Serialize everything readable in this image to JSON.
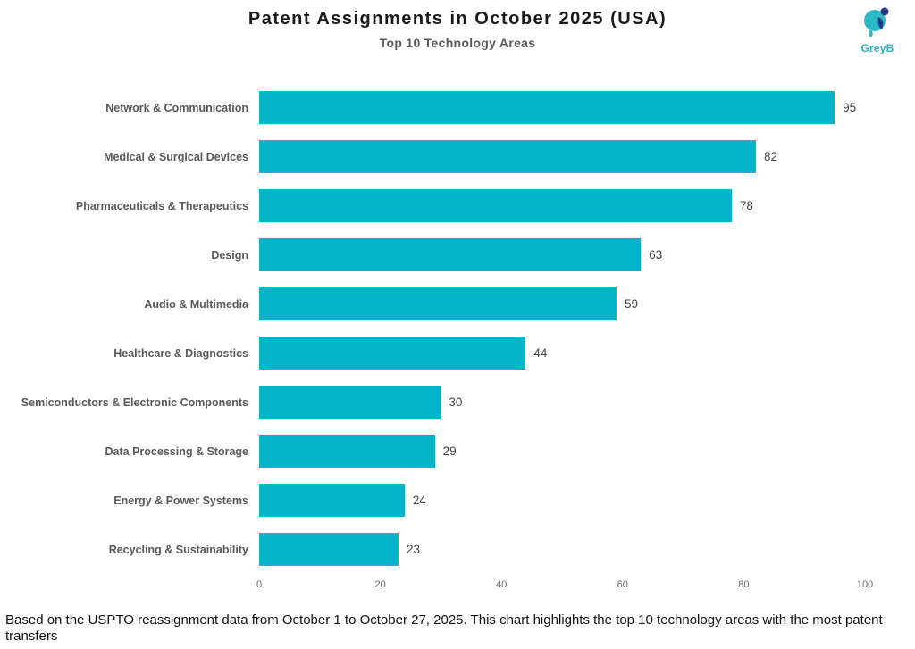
{
  "header": {
    "title": "Patent Assignments in October 2025 (USA)",
    "subtitle": "Top 10 Technology Areas",
    "logo_text": "GreyB"
  },
  "chart_data": {
    "type": "bar",
    "orientation": "horizontal",
    "title": "Patent Assignments in October 2025 (USA)",
    "subtitle": "Top 10 Technology Areas",
    "categories": [
      "Network & Communication",
      "Medical & Surgical Devices",
      "Pharmaceuticals & Therapeutics",
      "Design",
      "Audio & Multimedia",
      "Healthcare & Diagnostics",
      "Semiconductors & Electronic Components",
      "Data Processing & Storage",
      "Energy & Power Systems",
      "Recycling & Sustainability"
    ],
    "values": [
      95,
      82,
      78,
      63,
      59,
      44,
      30,
      29,
      24,
      23
    ],
    "xlabel": "",
    "ylabel": "",
    "xlim": [
      0,
      100
    ],
    "xticks": [
      0,
      20,
      40,
      60,
      80,
      100
    ],
    "grid": false,
    "legend": false,
    "value_labels": true,
    "bar_color": "#04b5c9"
  },
  "colors": {
    "bar": "#04b5c9",
    "logo_teal": "#27b3c3",
    "logo_navy": "#27378c",
    "title_text": "#1a1a1a",
    "subtitle_text": "#595959",
    "category_text": "#595959",
    "value_text": "#444444",
    "tick_text": "#666666"
  },
  "footer": {
    "note": "Based on the USPTO reassignment data from October 1 to October 27, 2025. This chart highlights the top 10 technology areas with the most patent transfers"
  }
}
